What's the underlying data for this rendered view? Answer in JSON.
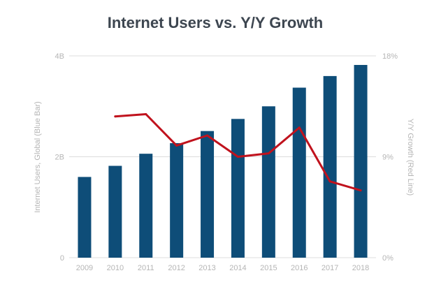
{
  "chart_data": {
    "type": "bar",
    "title": "Internet Users vs. Y/Y Growth",
    "categories": [
      "2009",
      "2010",
      "2011",
      "2012",
      "2013",
      "2014",
      "2015",
      "2016",
      "2017",
      "2018"
    ],
    "series": [
      {
        "name": "Internet Users, Global (Blue Bar)",
        "type": "bar",
        "axis": "left",
        "values": [
          1.6,
          1.82,
          2.06,
          2.27,
          2.51,
          2.75,
          3.0,
          3.37,
          3.6,
          3.82
        ]
      },
      {
        "name": "Y/Y Growth (Red Line)",
        "type": "line",
        "axis": "right",
        "x": [
          "2010",
          "2011",
          "2012",
          "2013",
          "2014",
          "2015",
          "2016",
          "2017",
          "2018"
        ],
        "values": [
          12.6,
          12.8,
          10.0,
          10.9,
          9.0,
          9.3,
          11.6,
          6.8,
          6.0
        ]
      }
    ],
    "ylabel": "Internet Users, Global (Blue Bar)",
    "y2label": "Y/Y Growth (Red Line)",
    "ylim": [
      0,
      4
    ],
    "y2lim": [
      0,
      18
    ],
    "yticks": [
      {
        "value": 0,
        "label": "0"
      },
      {
        "value": 2,
        "label": "2B"
      },
      {
        "value": 4,
        "label": "4B"
      }
    ],
    "y2ticks": [
      {
        "value": 0,
        "label": "0%"
      },
      {
        "value": 9,
        "label": "9%"
      },
      {
        "value": 18,
        "label": "18%"
      }
    ],
    "grid": true,
    "legend": "none",
    "colors": {
      "bar": "#0e4d78",
      "line": "#c0121d",
      "grid": "#dcdcdc",
      "tick": "#b5b5b5",
      "title": "#3d4650"
    }
  }
}
